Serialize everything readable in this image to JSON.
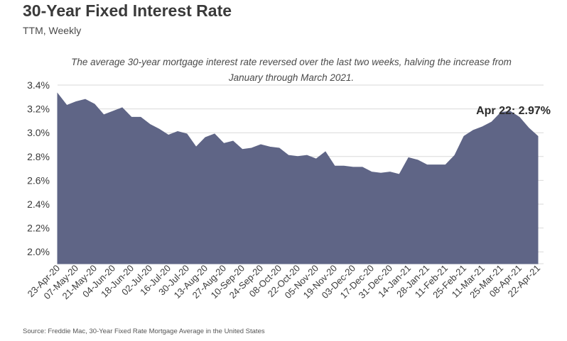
{
  "header": {
    "title": "30-Year Fixed Interest Rate",
    "subtitle": "TTM, Weekly"
  },
  "note": "The average 30-year mortgage interest rate reversed over the last two weeks, halving the increase from January through March 2021.",
  "source": "Source:  Freddie Mac, 30-Year Fixed Rate Mortgage Average in the United States",
  "colors": {
    "area": "#5f6586",
    "grid": "#d9d9d9",
    "text": "#3a3a3a"
  },
  "chart_data": {
    "type": "area",
    "title": "30-Year Fixed Interest Rate",
    "subtitle": "TTM, Weekly",
    "xlabel": "",
    "ylabel": "",
    "ylim": [
      1.9,
      3.4
    ],
    "yticks": [
      2.0,
      2.2,
      2.4,
      2.6,
      2.8,
      3.0,
      3.2,
      3.4
    ],
    "ytick_labels": [
      "2.0%",
      "2.2%",
      "2.4%",
      "2.6%",
      "2.8%",
      "3.0%",
      "3.2%",
      "3.4%"
    ],
    "grid": true,
    "xtick_labels": [
      "23-Apr-20",
      "07-May-20",
      "21-May-20",
      "04-Jun-20",
      "18-Jun-20",
      "02-Jul-20",
      "16-Jul-20",
      "30-Jul-20",
      "13-Aug-20",
      "27-Aug-20",
      "10-Sep-20",
      "24-Sep-20",
      "08-Oct-20",
      "22-Oct-20",
      "05-Nov-20",
      "19-Nov-20",
      "03-Dec-20",
      "17-Dec-20",
      "31-Dec-20",
      "14-Jan-21",
      "28-Jan-21",
      "11-Feb-21",
      "25-Feb-21",
      "11-Mar-21",
      "25-Mar-21",
      "08-Apr-21",
      "22-Apr-21"
    ],
    "x": [
      "23-Apr-20",
      "30-Apr-20",
      "07-May-20",
      "14-May-20",
      "21-May-20",
      "28-May-20",
      "04-Jun-20",
      "11-Jun-20",
      "18-Jun-20",
      "25-Jun-20",
      "02-Jul-20",
      "09-Jul-20",
      "16-Jul-20",
      "23-Jul-20",
      "30-Jul-20",
      "06-Aug-20",
      "13-Aug-20",
      "20-Aug-20",
      "27-Aug-20",
      "03-Sep-20",
      "10-Sep-20",
      "17-Sep-20",
      "24-Sep-20",
      "01-Oct-20",
      "08-Oct-20",
      "15-Oct-20",
      "22-Oct-20",
      "29-Oct-20",
      "05-Nov-20",
      "12-Nov-20",
      "19-Nov-20",
      "26-Nov-20",
      "03-Dec-20",
      "10-Dec-20",
      "17-Dec-20",
      "24-Dec-20",
      "31-Dec-20",
      "07-Jan-21",
      "14-Jan-21",
      "21-Jan-21",
      "28-Jan-21",
      "04-Feb-21",
      "11-Feb-21",
      "18-Feb-21",
      "25-Feb-21",
      "04-Mar-21",
      "11-Mar-21",
      "18-Mar-21",
      "25-Mar-21",
      "01-Apr-21",
      "08-Apr-21",
      "15-Apr-21",
      "22-Apr-21"
    ],
    "series": [
      {
        "values": [
          3.33,
          3.23,
          3.26,
          3.28,
          3.24,
          3.15,
          3.18,
          3.21,
          3.13,
          3.13,
          3.07,
          3.03,
          2.98,
          3.01,
          2.99,
          2.88,
          2.96,
          2.99,
          2.91,
          2.93,
          2.86,
          2.87,
          2.9,
          2.88,
          2.87,
          2.81,
          2.8,
          2.81,
          2.78,
          2.84,
          2.72,
          2.72,
          2.71,
          2.71,
          2.67,
          2.66,
          2.67,
          2.65,
          2.79,
          2.77,
          2.73,
          2.73,
          2.73,
          2.81,
          2.97,
          3.02,
          3.05,
          3.09,
          3.17,
          3.18,
          3.13,
          3.04,
          2.97
        ]
      }
    ],
    "annotation": {
      "x": "22-Apr-21",
      "label": "Apr 22: 2.97%"
    }
  }
}
